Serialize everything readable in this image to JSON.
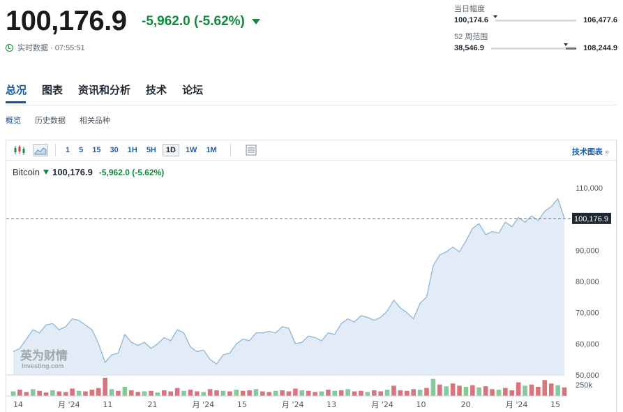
{
  "header": {
    "price": "100,176.9",
    "change": "-5,962.0 (-5.62%)",
    "realtime": "实时数据 · 07:55:51"
  },
  "day_range": {
    "title": "当日幅度",
    "low": "100,174.6",
    "high": "106,477.6",
    "position": 0.0
  },
  "week52_range": {
    "title": "52 周范围",
    "low": "38,546.9",
    "high": "108,244.9",
    "position": 0.88
  },
  "tabs": [
    "总况",
    "图表",
    "资讯和分析",
    "技术",
    "论坛"
  ],
  "subtabs": [
    "概览",
    "历史数据",
    "相关品种"
  ],
  "toolbar": {
    "timeframes": [
      "1",
      "5",
      "15",
      "30",
      "1H",
      "5H",
      "1D",
      "1W",
      "1M"
    ],
    "active_timeframe": "1D",
    "advanced": "技术图表",
    "advanced_arrow": "»"
  },
  "legend": {
    "name": "Bitcoin",
    "value": "100,176.9",
    "change": "-5,962.0 (-5.62%)"
  },
  "watermark": {
    "cn": "英为财情",
    "en": "Investing.com"
  },
  "colors": {
    "up": "#0d8a3a",
    "accent": "#1256a0",
    "line": "#8eb6d8",
    "fill": "#dce9f4",
    "vol_red": "#d9747a",
    "vol_green": "#86c99a"
  },
  "chart_data": {
    "type": "area",
    "y_ticks": [
      "110,000",
      "100,000",
      "90,000",
      "80,000",
      "70,000",
      "60,000",
      "50,000"
    ],
    "ylim": [
      50000,
      110000
    ],
    "last_value_label": "100,176.9",
    "last_value": 100176.9,
    "volume_label": "250k",
    "x_ticks": [
      "14",
      "月 '24",
      "11",
      "21",
      "月 '24",
      "15",
      "月 '24",
      "13",
      "月 '24",
      "10",
      "20",
      "月 '24",
      "15"
    ],
    "values": [
      57500,
      58500,
      61500,
      64500,
      63500,
      66000,
      66500,
      64500,
      65500,
      68000,
      67500,
      66000,
      64500,
      60000,
      54000,
      56500,
      57000,
      63000,
      60500,
      59500,
      60500,
      58500,
      60000,
      62000,
      61000,
      64500,
      63500,
      59000,
      57500,
      58000,
      55000,
      53500,
      56500,
      57000,
      60000,
      61500,
      61000,
      63500,
      63500,
      64000,
      63500,
      65500,
      65000,
      60000,
      60500,
      62500,
      62000,
      61000,
      63500,
      63000,
      66500,
      68000,
      67000,
      69000,
      68500,
      67500,
      68500,
      70500,
      74000,
      71500,
      70000,
      68000,
      73000,
      75000,
      85000,
      88500,
      89500,
      91000,
      89500,
      93000,
      97000,
      98500,
      95000,
      96000,
      95500,
      99000,
      97500,
      100500,
      99000,
      101000,
      99500,
      102500,
      104000,
      106500,
      100176.9
    ],
    "volume": [
      {
        "v": 40,
        "up": true
      },
      {
        "v": 55,
        "up": false
      },
      {
        "v": 35,
        "up": false
      },
      {
        "v": 60,
        "up": true
      },
      {
        "v": 45,
        "up": false
      },
      {
        "v": 30,
        "up": false
      },
      {
        "v": 50,
        "up": true
      },
      {
        "v": 40,
        "up": false
      },
      {
        "v": 35,
        "up": false
      },
      {
        "v": 65,
        "up": false
      },
      {
        "v": 45,
        "up": true
      },
      {
        "v": 40,
        "up": false
      },
      {
        "v": 55,
        "up": false
      },
      {
        "v": 70,
        "up": false
      },
      {
        "v": 160,
        "up": false
      },
      {
        "v": 60,
        "up": true
      },
      {
        "v": 45,
        "up": false
      },
      {
        "v": 80,
        "up": true
      },
      {
        "v": 50,
        "up": false
      },
      {
        "v": 35,
        "up": false
      },
      {
        "v": 40,
        "up": true
      },
      {
        "v": 45,
        "up": false
      },
      {
        "v": 30,
        "up": true
      },
      {
        "v": 50,
        "up": false
      },
      {
        "v": 40,
        "up": false
      },
      {
        "v": 70,
        "up": false
      },
      {
        "v": 45,
        "up": true
      },
      {
        "v": 55,
        "up": false
      },
      {
        "v": 40,
        "up": false
      },
      {
        "v": 35,
        "up": true
      },
      {
        "v": 60,
        "up": false
      },
      {
        "v": 50,
        "up": false
      },
      {
        "v": 45,
        "up": true
      },
      {
        "v": 40,
        "up": false
      },
      {
        "v": 55,
        "up": true
      },
      {
        "v": 45,
        "up": false
      },
      {
        "v": 50,
        "up": false
      },
      {
        "v": 60,
        "up": true
      },
      {
        "v": 40,
        "up": false
      },
      {
        "v": 35,
        "up": false
      },
      {
        "v": 45,
        "up": true
      },
      {
        "v": 50,
        "up": false
      },
      {
        "v": 40,
        "up": false
      },
      {
        "v": 65,
        "up": false
      },
      {
        "v": 50,
        "up": true
      },
      {
        "v": 45,
        "up": false
      },
      {
        "v": 35,
        "up": false
      },
      {
        "v": 40,
        "up": true
      },
      {
        "v": 55,
        "up": false
      },
      {
        "v": 45,
        "up": true
      },
      {
        "v": 50,
        "up": false
      },
      {
        "v": 60,
        "up": true
      },
      {
        "v": 40,
        "up": false
      },
      {
        "v": 45,
        "up": false
      },
      {
        "v": 35,
        "up": true
      },
      {
        "v": 50,
        "up": false
      },
      {
        "v": 40,
        "up": false
      },
      {
        "v": 55,
        "up": true
      },
      {
        "v": 90,
        "up": false
      },
      {
        "v": 50,
        "up": false
      },
      {
        "v": 45,
        "up": false
      },
      {
        "v": 60,
        "up": false
      },
      {
        "v": 55,
        "up": true
      },
      {
        "v": 70,
        "up": false
      },
      {
        "v": 150,
        "up": true
      },
      {
        "v": 100,
        "up": false
      },
      {
        "v": 85,
        "up": true
      },
      {
        "v": 110,
        "up": false
      },
      {
        "v": 90,
        "up": false
      },
      {
        "v": 80,
        "up": true
      },
      {
        "v": 95,
        "up": false
      },
      {
        "v": 75,
        "up": true
      },
      {
        "v": 85,
        "up": false
      },
      {
        "v": 60,
        "up": false
      },
      {
        "v": 55,
        "up": true
      },
      {
        "v": 70,
        "up": false
      },
      {
        "v": 50,
        "up": false
      },
      {
        "v": 120,
        "up": false
      },
      {
        "v": 90,
        "up": true
      },
      {
        "v": 100,
        "up": false
      },
      {
        "v": 80,
        "up": false
      },
      {
        "v": 140,
        "up": false
      },
      {
        "v": 110,
        "up": false
      },
      {
        "v": 95,
        "up": true
      },
      {
        "v": 75,
        "up": false
      }
    ]
  }
}
